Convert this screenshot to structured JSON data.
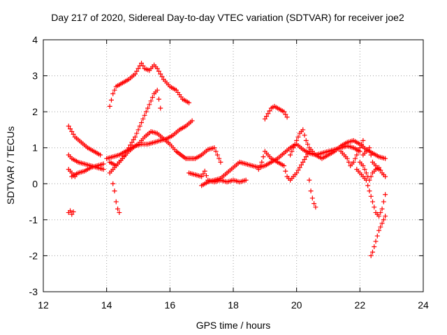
{
  "chart_data": {
    "type": "scatter",
    "title": "Day 217 of 2020, Sidereal Day-to-day VTEC variation (SDTVAR) for receiver joe2",
    "xlabel": "GPS time / hours",
    "ylabel": "SDTVAR / TECUs",
    "xlim": [
      12,
      24
    ],
    "ylim": [
      -3,
      4
    ],
    "xticks": [
      12,
      14,
      16,
      18,
      20,
      22,
      24
    ],
    "yticks": [
      -3,
      -2,
      -1,
      0,
      1,
      2,
      3,
      4
    ],
    "grid": true,
    "marker": "+",
    "color": "#ff0000",
    "series": [
      {
        "name": "s1",
        "x": [
          12.8,
          12.9,
          13.0,
          13.2,
          13.4,
          13.6,
          13.8
        ],
        "y": [
          1.6,
          1.45,
          1.3,
          1.15,
          1.0,
          0.9,
          0.8
        ]
      },
      {
        "name": "s2",
        "x": [
          12.8,
          12.9,
          13.1,
          13.3,
          13.5,
          13.7,
          13.9
        ],
        "y": [
          0.8,
          0.7,
          0.6,
          0.55,
          0.5,
          0.45,
          0.4
        ]
      },
      {
        "name": "s3",
        "x": [
          12.8,
          12.9,
          13.0
        ],
        "y": [
          0.4,
          0.3,
          0.2
        ]
      },
      {
        "name": "s4",
        "x": [
          12.9,
          13.1,
          13.3,
          13.5,
          13.7,
          13.9
        ],
        "y": [
          0.2,
          0.3,
          0.35,
          0.45,
          0.5,
          0.55
        ]
      },
      {
        "name": "s5",
        "x": [
          12.8,
          12.85,
          12.9,
          12.95
        ],
        "y": [
          -0.8,
          -0.75,
          -0.85,
          -0.78
        ]
      },
      {
        "name": "s6",
        "x": [
          14.1,
          14.2,
          14.3,
          14.5,
          14.7,
          14.9,
          15.0,
          15.1,
          15.2,
          15.35,
          15.5,
          15.6,
          15.8,
          16.0,
          16.2,
          16.4,
          16.6
        ],
        "y": [
          2.15,
          2.5,
          2.7,
          2.8,
          2.9,
          3.05,
          3.2,
          3.35,
          3.2,
          3.15,
          3.3,
          3.2,
          2.9,
          2.7,
          2.6,
          2.35,
          2.25
        ]
      },
      {
        "name": "s7",
        "x": [
          14.1,
          14.3,
          14.5,
          14.7,
          14.9,
          15.1,
          15.3,
          15.5,
          15.6,
          15.7
        ],
        "y": [
          0.6,
          0.5,
          0.7,
          1.0,
          1.3,
          1.7,
          2.1,
          2.5,
          2.6,
          2.1
        ]
      },
      {
        "name": "s8",
        "x": [
          14.1,
          14.3,
          14.5,
          14.7,
          14.9,
          15.1,
          15.3,
          15.5,
          15.7,
          15.9,
          16.1,
          16.3,
          16.5,
          16.7
        ],
        "y": [
          0.3,
          0.5,
          0.7,
          0.9,
          1.05,
          1.1,
          1.1,
          1.15,
          1.2,
          1.25,
          1.35,
          1.5,
          1.6,
          1.75
        ]
      },
      {
        "name": "s9",
        "x": [
          14.0,
          14.2,
          14.4,
          14.6,
          14.8,
          15.0,
          15.2,
          15.4,
          15.6,
          15.8,
          16.0,
          16.2,
          16.5,
          16.8,
          17.0,
          17.2,
          17.4,
          17.6
        ],
        "y": [
          0.7,
          0.75,
          0.8,
          0.9,
          1.0,
          1.1,
          1.3,
          1.45,
          1.4,
          1.25,
          1.1,
          0.9,
          0.7,
          0.7,
          0.8,
          0.95,
          1.0,
          0.6
        ]
      },
      {
        "name": "s10",
        "x": [
          14.2,
          14.25,
          14.3,
          14.35,
          14.4
        ],
        "y": [
          0.0,
          -0.2,
          -0.5,
          -0.7,
          -0.8
        ]
      },
      {
        "name": "s11",
        "x": [
          16.6,
          16.8,
          17.0,
          17.1,
          17.2,
          17.4,
          17.6,
          17.8,
          18.0,
          18.2,
          18.4
        ],
        "y": [
          0.3,
          0.25,
          0.2,
          0.35,
          0.1,
          0.05,
          0.1,
          0.05,
          0.1,
          0.05,
          0.1
        ]
      },
      {
        "name": "s12",
        "x": [
          17.0,
          17.2,
          17.4,
          17.6,
          17.8,
          18.0,
          18.2,
          18.4,
          18.6,
          18.8,
          19.0,
          19.2,
          19.4,
          19.6,
          19.8,
          20.0,
          20.2,
          20.4,
          20.6,
          20.8,
          21.0,
          21.2,
          21.4,
          21.6,
          21.8,
          22.0
        ],
        "y": [
          -0.05,
          0.05,
          0.1,
          0.15,
          0.3,
          0.45,
          0.6,
          0.55,
          0.5,
          0.45,
          0.5,
          0.6,
          0.7,
          0.85,
          1.0,
          1.1,
          0.95,
          0.85,
          0.8,
          0.85,
          0.9,
          0.95,
          1.0,
          1.05,
          1.0,
          0.9
        ]
      },
      {
        "name": "s13",
        "x": [
          19.0,
          19.1,
          19.2,
          19.3,
          19.4,
          19.5,
          19.6,
          19.7
        ],
        "y": [
          1.8,
          1.95,
          2.1,
          2.15,
          2.1,
          2.05,
          2.0,
          1.85
        ]
      },
      {
        "name": "s14",
        "x": [
          18.8,
          18.9,
          19.0,
          19.2,
          19.4,
          19.6,
          19.7,
          19.8,
          20.0,
          20.2,
          20.4
        ],
        "y": [
          0.4,
          0.6,
          0.9,
          0.7,
          0.6,
          0.5,
          0.2,
          0.1,
          0.3,
          0.6,
          0.9
        ]
      },
      {
        "name": "s15",
        "x": [
          19.8,
          20.0,
          20.1,
          20.2,
          20.3,
          20.4,
          20.6,
          20.8,
          21.0,
          21.2,
          21.4,
          21.6,
          21.8,
          22.0,
          22.2,
          22.4,
          22.6,
          22.8
        ],
        "y": [
          0.8,
          1.2,
          1.4,
          1.5,
          1.2,
          1.0,
          0.8,
          0.7,
          0.8,
          0.9,
          1.05,
          1.15,
          1.2,
          1.1,
          0.95,
          0.85,
          0.75,
          0.7
        ]
      },
      {
        "name": "s16",
        "x": [
          20.4,
          20.45,
          20.5,
          20.55,
          20.6
        ],
        "y": [
          0.1,
          -0.2,
          -0.4,
          -0.55,
          -0.65
        ]
      },
      {
        "name": "s17",
        "x": [
          21.4,
          21.5,
          21.6,
          21.7,
          21.8,
          21.9,
          22.0,
          22.1
        ],
        "y": [
          0.9,
          0.8,
          0.7,
          0.5,
          0.6,
          0.8,
          1.0,
          1.2
        ]
      },
      {
        "name": "s18",
        "x": [
          21.9,
          22.0,
          22.1,
          22.2,
          22.3,
          22.4,
          22.5,
          22.6,
          22.7,
          22.8
        ],
        "y": [
          0.4,
          0.3,
          0.2,
          0.1,
          -0.2,
          -0.5,
          -0.8,
          -0.9,
          -0.7,
          -0.3
        ]
      },
      {
        "name": "s19",
        "x": [
          22.0,
          22.1,
          22.2,
          22.3,
          22.4,
          22.5,
          22.6,
          22.7,
          22.8
        ],
        "y": [
          0.6,
          0.5,
          0.3,
          0.1,
          0.3,
          0.4,
          0.45,
          0.3,
          0.2
        ]
      },
      {
        "name": "s20",
        "x": [
          22.35,
          22.4,
          22.45,
          22.5,
          22.55,
          22.6,
          22.65,
          22.7,
          22.75,
          22.8
        ],
        "y": [
          -2.0,
          -1.9,
          -1.75,
          -1.6,
          -1.45,
          -1.3,
          -1.2,
          -1.1,
          -1.0,
          -0.9
        ]
      },
      {
        "name": "s21",
        "x": [
          22.1,
          22.2,
          22.3,
          22.4,
          22.5,
          22.6
        ],
        "y": [
          0.8,
          0.9,
          1.0,
          0.6,
          0.5,
          0.4
        ]
      }
    ]
  }
}
